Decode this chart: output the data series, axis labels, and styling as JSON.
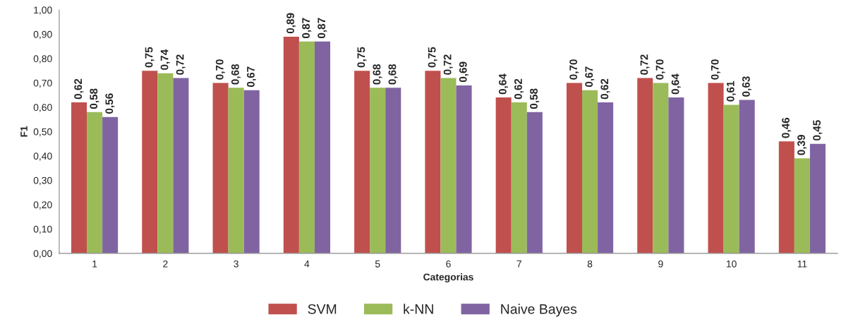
{
  "chart_data": {
    "type": "bar",
    "xlabel": "Categorias",
    "ylabel": "F1",
    "categories": [
      "1",
      "2",
      "3",
      "4",
      "5",
      "6",
      "7",
      "8",
      "9",
      "10",
      "11"
    ],
    "series": [
      {
        "name": "SVM",
        "color": "#c0504d",
        "values": [
          0.62,
          0.75,
          0.7,
          0.89,
          0.75,
          0.75,
          0.64,
          0.7,
          0.72,
          0.7,
          0.46
        ],
        "value_labels": [
          "0,62",
          "0,75",
          "0,70",
          "0,89",
          "0,75",
          "0,75",
          "0,64",
          "0,70",
          "0,72",
          "0,70",
          "0,46"
        ]
      },
      {
        "name": "k-NN",
        "color": "#9bbb59",
        "values": [
          0.58,
          0.74,
          0.68,
          0.87,
          0.68,
          0.72,
          0.62,
          0.67,
          0.7,
          0.61,
          0.39
        ],
        "value_labels": [
          "0,58",
          "0,74",
          "0,68",
          "0,87",
          "0,68",
          "0,72",
          "0,62",
          "0,67",
          "0,70",
          "0,61",
          "0,39"
        ]
      },
      {
        "name": "Naive Bayes",
        "color": "#8064a2",
        "values": [
          0.56,
          0.72,
          0.67,
          0.87,
          0.68,
          0.69,
          0.58,
          0.62,
          0.64,
          0.63,
          0.45
        ],
        "value_labels": [
          "0,56",
          "0,72",
          "0,67",
          "0,87",
          "0,68",
          "0,69",
          "0,58",
          "0,62",
          "0,64",
          "0,63",
          "0,45"
        ]
      }
    ],
    "ylim": [
      0,
      1
    ],
    "yticks": [
      {
        "value": 0,
        "label": "0,00"
      },
      {
        "value": 0.1,
        "label": "0,10"
      },
      {
        "value": 0.2,
        "label": "0,20"
      },
      {
        "value": 0.3,
        "label": "0,30"
      },
      {
        "value": 0.4,
        "label": "0,40"
      },
      {
        "value": 0.5,
        "label": "0,50"
      },
      {
        "value": 0.6,
        "label": "0,60"
      },
      {
        "value": 0.7,
        "label": "0,70"
      },
      {
        "value": 0.8,
        "label": "0,80"
      },
      {
        "value": 0.9,
        "label": "0,90"
      },
      {
        "value": 1,
        "label": "1,00"
      }
    ],
    "grid": false,
    "legend": "bottom"
  }
}
